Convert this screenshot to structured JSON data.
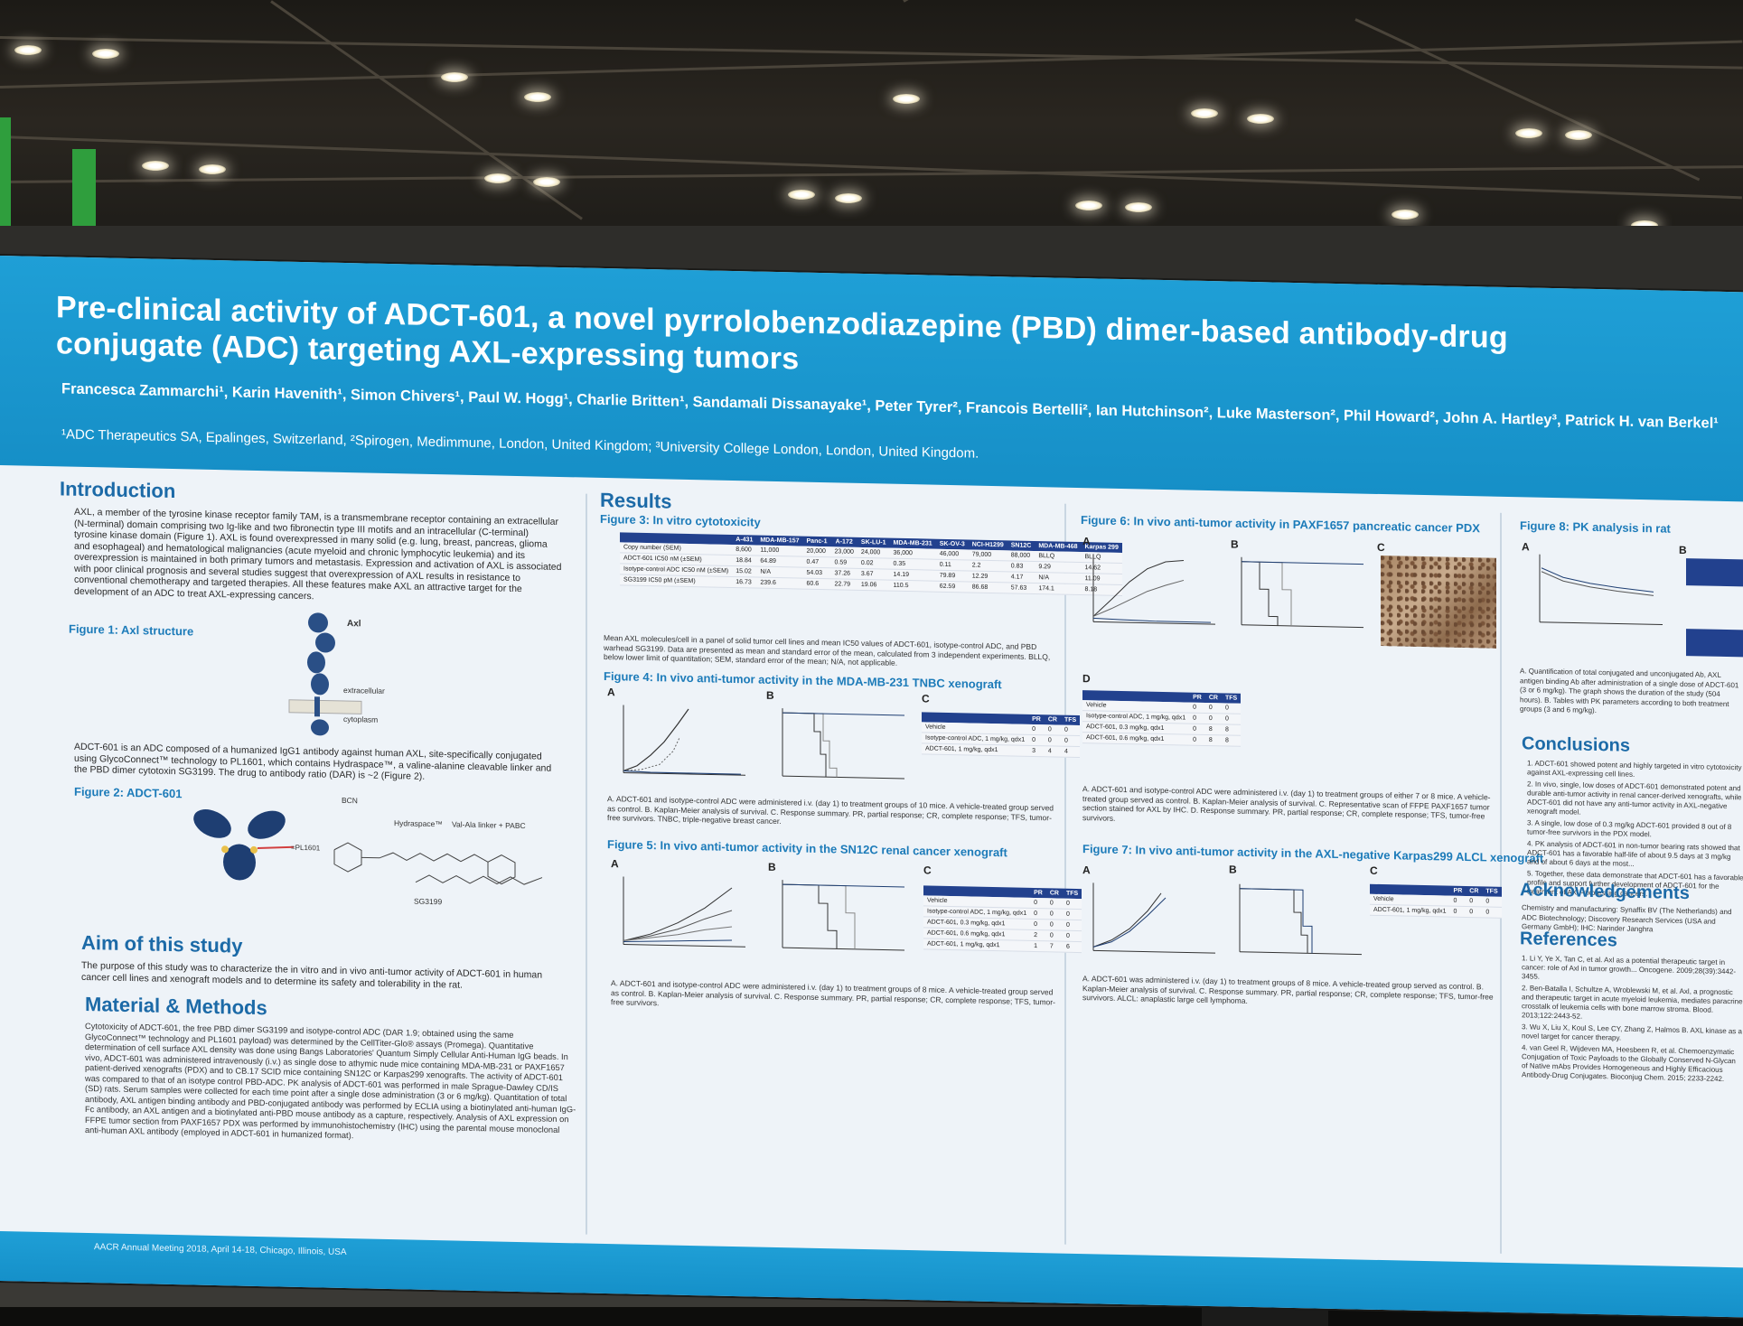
{
  "poster": {
    "title": "Pre-clinical activity of ADCT-601, a novel pyrrolobenzodiazepine (PBD) dimer-based antibody-drug conjugate (ADC) targeting AXL-expressing tumors",
    "authors": "Francesca Zammarchi¹, Karin Havenith¹, Simon Chivers¹, Paul W. Hogg¹, Charlie Britten¹, Sandamali Dissanayake¹, Peter Tyrer², Francois Bertelli², Ian Hutchinson², Luke Masterson², Phil Howard², John A. Hartley³, Patrick H. van Berkel¹",
    "affiliations": "¹ADC Therapeutics SA, Epalinges, Switzerland, ²Spirogen, Medimmune, London, United Kingdom; ³University College London, London, United Kingdom.",
    "footer": "AACR Annual Meeting 2018, April 14-18, Chicago, Illinois, USA"
  },
  "sections": {
    "introduction": {
      "heading": "Introduction",
      "p1": "AXL, a member of the tyrosine kinase receptor family TAM, is a transmembrane receptor containing an extracellular (N-terminal) domain comprising two Ig-like and two fibronectin type III motifs and an intracellular (C-terminal) tyrosine kinase domain (Figure 1). AXL is found overexpressed in many solid (e.g. lung, breast, pancreas, glioma and esophageal) and hematological malignancies (acute myeloid and chronic lymphocytic leukemia) and its overexpression is maintained in both primary tumors and metastasis. Expression and activation of AXL is associated with poor clinical prognosis and several studies suggest that overexpression of AXL results in resistance to conventional chemotherapy and targeted therapies. All these features make AXL an attractive target for the development of an ADC to treat AXL-expressing cancers.",
      "fig1": "Figure 1: Axl structure",
      "fig1_labels": [
        "Axl",
        "extracellular",
        "cytoplasm"
      ],
      "p2": "ADCT-601 is an ADC composed of a humanized IgG1 antibody against human AXL, site-specifically conjugated using GlycoConnect™ technology to PL1601, which contains Hydraspace™, a valine-alanine cleavable linker and the PBD dimer cytotoxin SG3199. The drug to antibody ratio (DAR) is ~2 (Figure 2).",
      "fig2": "Figure 2: ADCT-601",
      "fig2_labels": [
        "BCN",
        "Hydraspace™",
        "Val-Ala linker + PABC",
        "=PL1601",
        "SG3199"
      ]
    },
    "aim": {
      "heading": "Aim of this study",
      "text": "The purpose of this study was to characterize the in vitro and in vivo anti-tumor activity of ADCT-601 in human cancer cell lines and xenograft models and to determine its safety and tolerability in the rat."
    },
    "methods": {
      "heading": "Material & Methods",
      "text": "Cytotoxicity of ADCT-601, the free PBD dimer SG3199 and isotype-control ADC (DAR 1.9; obtained using the same GlycoConnect™ technology and PL1601 payload) was determined by the CellTiter-Glo® assays (Promega). Quantitative determination of cell surface AXL density was done using Bangs Laboratories' Quantum Simply Cellular Anti-Human IgG beads. In vivo, ADCT-601 was administered intravenously (i.v.) as single dose to athymic nude mice containing MDA-MB-231 or PAXF1657 patient-derived xenografts (PDX) and to CB.17 SCID mice containing SN12C or Karpas299 xenografts. The activity of ADCT-601 was compared to that of an isotype control PBD-ADC. PK analysis of ADCT-601 was performed in male Sprague-Dawley CD/IS (SD) rats. Serum samples were collected for each time point after a single dose administration (3 or 6 mg/kg). Quantitation of total antibody, AXL antigen binding antibody and PBD-conjugated antibody was performed by ECLIA using a biotinylated anti-human IgG-Fc antibody, an AXL antigen and a biotinylated anti-PBD mouse antibody as a capture, respectively. Analysis of AXL expression on FFPE tumor section from PAXF1657 PDX was performed by immunohistochemistry (IHC) using the parental mouse monoclonal anti-human AXL antibody (employed in ADCT-601 in humanized format)."
    },
    "results": {
      "heading": "Results",
      "fig3": "Figure 3: In vitro cytotoxicity",
      "fig3_cols": [
        "",
        "A-431",
        "MDA-MB-157",
        "Panc-1",
        "A-172",
        "SK-LU-1",
        "MDA-MB-231",
        "SK-OV-3",
        "NCI-H1299",
        "SN12C",
        "MDA-MB-468",
        "Karpas 299"
      ],
      "fig3_rows": [
        [
          "Copy number (SEM)",
          "8,600",
          "11,000",
          "20,000",
          "23,000",
          "24,000",
          "36,000",
          "46,000",
          "79,000",
          "88,000",
          "BLLQ",
          "BLLQ"
        ],
        [
          "ADCT-601 IC50 nM (±SEM)",
          "18.84",
          "64.89",
          "0.47",
          "0.59",
          "0.02",
          "0.35",
          "0.11",
          "2.2",
          "0.83",
          "9.29",
          "14.62"
        ],
        [
          "Isotype-control ADC IC50 nM (±SEM)",
          "15.02",
          "N/A",
          "54.03",
          "37.26",
          "3.67",
          "14.19",
          "79.89",
          "12.29",
          "4.17",
          "N/A",
          "11.09"
        ],
        [
          "SG3199 IC50 pM (±SEM)",
          "16.73",
          "239.6",
          "60.6",
          "22.79",
          "19.06",
          "110.5",
          "62.59",
          "86.68",
          "57.63",
          "174.1",
          "8.18"
        ]
      ],
      "fig3_caption": "Mean AXL molecules/cell in a panel of solid tumor cell lines and mean IC50 values of ADCT-601, isotype-control ADC, and PBD warhead SG3199. Data are presented as mean and standard error of the mean, calculated from 3 independent experiments. BLLQ, below lower limit of quantitation; SEM, standard error of the mean; N/A, not applicable.",
      "fig4": "Figure 4: In vivo anti-tumor activity in the MDA-MB-231 TNBC xenograft",
      "fig4_caption": "A. ADCT-601 and isotype-control ADC were administered i.v. (day 1) to treatment groups of 10 mice. A vehicle-treated group served as control. B. Kaplan-Meier analysis of survival. C. Response summary. PR, partial response; CR, complete response; TFS, tumor-free survivors. TNBC, triple-negative breast cancer.",
      "fig4_table": [
        [
          "",
          "PR",
          "CR",
          "TFS"
        ],
        [
          "Vehicle",
          "0",
          "0",
          "0"
        ],
        [
          "Isotype-control ADC, 1 mg/kg, qdx1",
          "0",
          "0",
          "0"
        ],
        [
          "ADCT-601, 1 mg/kg, qdx1",
          "3",
          "4",
          "4"
        ]
      ],
      "fig5": "Figure 5: In vivo anti-tumor activity in the SN12C renal cancer xenograft",
      "fig5_caption": "A. ADCT-601 and isotype-control ADC were administered i.v. (day 1) to treatment groups of 8 mice. A vehicle-treated group served as control. B. Kaplan-Meier analysis of survival. C. Response summary. PR, partial response; CR, complete response; TFS, tumor-free survivors.",
      "fig5_table": [
        [
          "",
          "PR",
          "CR",
          "TFS"
        ],
        [
          "Vehicle",
          "0",
          "0",
          "0"
        ],
        [
          "Isotype-control ADC, 1 mg/kg, qdx1",
          "0",
          "0",
          "0"
        ],
        [
          "ADCT-601, 0.3 mg/kg, qdx1",
          "0",
          "0",
          "0"
        ],
        [
          "ADCT-601, 0.6 mg/kg, qdx1",
          "2",
          "0",
          "0"
        ],
        [
          "ADCT-601, 1 mg/kg, qdx1",
          "1",
          "7",
          "6"
        ]
      ],
      "fig6": "Figure 6: In vivo anti-tumor activity in PAXF1657 pancreatic cancer PDX",
      "fig6_table": [
        [
          "",
          "PR",
          "CR",
          "TFS"
        ],
        [
          "Vehicle",
          "0",
          "0",
          "0"
        ],
        [
          "Isotype-control ADC, 1 mg/kg, qdx1",
          "0",
          "0",
          "0"
        ],
        [
          "ADCT-601, 0.3 mg/kg, qdx1",
          "0",
          "8",
          "8"
        ],
        [
          "ADCT-601, 0.6 mg/kg, qdx1",
          "0",
          "8",
          "8"
        ]
      ],
      "fig6_caption": "A. ADCT-601 and isotype-control ADC were administered i.v. (day 1) to treatment groups of either 7 or 8 mice. A vehicle-treated group served as control. B. Kaplan-Meier analysis of survival. C. Representative scan of FFPE PAXF1657 tumor section stained for AXL by IHC. D. Response summary. PR, partial response; CR, complete response; TFS, tumor-free survivors.",
      "fig7": "Figure 7: In vivo anti-tumor activity in the AXL-negative Karpas299 ALCL xenograft",
      "fig7_table": [
        [
          "",
          "PR",
          "CR",
          "TFS"
        ],
        [
          "Vehicle",
          "0",
          "0",
          "0"
        ],
        [
          "ADCT-601, 1 mg/kg, qdx1",
          "0",
          "0",
          "0"
        ]
      ],
      "fig7_caption": "A. ADCT-601 was administered i.v. (day 1) to treatment groups of 8 mice. A vehicle-treated group served as control. B. Kaplan-Meier analysis of survival. C. Response summary. PR, partial response; CR, complete response; TFS, tumor-free survivors. ALCL: anaplastic large cell lymphoma.",
      "fig8": "Figure 8: PK analysis in rat",
      "fig8_caption": "A. Quantification of total conjugated and unconjugated Ab, AXL antigen binding Ab after administration of a single dose of ADCT-601 (3 or 6 mg/kg). The graph shows the duration of the study (504 hours). B. Tables with PK parameters according to both treatment groups (3 and 6 mg/kg).",
      "panel_letters": [
        "A",
        "B",
        "C",
        "D"
      ]
    },
    "conclusions": {
      "heading": "Conclusions",
      "items": [
        "1. ADCT-601 showed potent and highly targeted in vitro cytotoxicity against AXL-expressing cell lines.",
        "2. In vivo, single, low doses of ADCT-601 demonstrated potent and durable anti-tumor activity in renal cancer-derived xenografts, while ADCT-601 did not have any anti-tumor activity in AXL-negative xenograft model.",
        "3. A single, low dose of 0.3 mg/kg ADCT-601 provided 8 out of 8 tumor-free survivors in the PDX model.",
        "4. PK analysis of ADCT-601 in non-tumor bearing rats showed that ADCT-601 has a favorable half-life of about 9.5 days at 3 mg/kg and of about 6 days at the most...",
        "5. Together, these data demonstrate that ADCT-601 has a favorable profile and support further development of ADCT-601 for the treatment of AXL-expressing cancers."
      ]
    },
    "acknowledgements": {
      "heading": "Acknowledgements",
      "text": "Chemistry and manufacturing: Synaffix BV (The Netherlands) and ADC Biotechnology; Discovery Research Services (USA and Germany GmbH); IHC: Narinder Janghra"
    },
    "references": {
      "heading": "References",
      "items": [
        "1. Li Y, Ye X, Tan C, et al. Axl as a potential therapeutic target in cancer: role of Axl in tumor growth... Oncogene. 2009;28(39):3442-3455.",
        "2. Ben-Batalla I, Schultze A, Wroblewski M, et al. Axl, a prognostic and therapeutic target in acute myeloid leukemia, mediates paracrine crosstalk of leukemia cells with bone marrow stroma. Blood. 2013;122:2443-52.",
        "3. Wu X, Liu X, Koul S, Lee CY, Zhang Z, Halmos B. AXL kinase as a novel target for cancer therapy.",
        "4. van Geel R, Wijdeven MA, Heesbeen R, et al. Chemoenzymatic Conjugation of Toxic Payloads to the Globally Conserved N-Glycan of Native mAbs Provides Homogeneous and Highly Efficacious Antibody-Drug Conjugates. Bioconjug Chem. 2015; 2233-2242."
      ]
    }
  },
  "colors": {
    "header_blue": "#1f9fd6",
    "heading_blue": "#1c6aa7",
    "table_header": "#22418e",
    "banner_green": "#2f9e3d"
  }
}
